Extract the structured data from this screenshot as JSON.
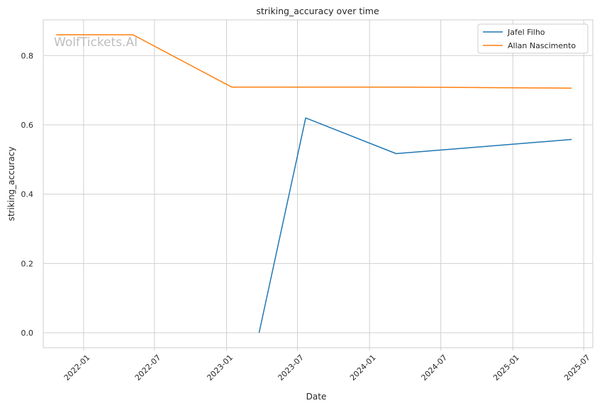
{
  "chart_data": {
    "type": "line",
    "title": "striking_accuracy over time",
    "xlabel": "Date",
    "ylabel": "striking_accuracy",
    "watermark": "WolfTickets.AI",
    "grid": true,
    "legend_position": "top-right",
    "xlim": [
      "2021-09-20",
      "2025-07-24"
    ],
    "ylim": [
      -0.043,
      0.903
    ],
    "x_ticks": [
      "2022-01-01",
      "2022-07-01",
      "2023-01-01",
      "2023-07-01",
      "2024-01-01",
      "2024-07-01",
      "2025-01-01",
      "2025-07-01"
    ],
    "x_tick_labels": [
      "2022-01",
      "2022-07",
      "2023-01",
      "2023-07",
      "2024-01",
      "2024-07",
      "2025-01",
      "2025-07"
    ],
    "y_ticks": [
      0.0,
      0.2,
      0.4,
      0.6,
      0.8
    ],
    "y_tick_labels": [
      "0.0",
      "0.2",
      "0.4",
      "0.6",
      "0.8"
    ],
    "series": [
      {
        "name": "Jafel Filho",
        "color": "#1f77b4",
        "x": [
          "2023-03-25",
          "2023-07-22",
          "2024-03-09",
          "2025-05-31"
        ],
        "y": [
          0.0,
          0.62,
          0.517,
          0.558
        ]
      },
      {
        "name": "Allan Nascimento",
        "color": "#ff7f0e",
        "x": [
          "2021-10-23",
          "2022-05-07",
          "2023-01-14",
          "2024-03-09",
          "2025-05-31"
        ],
        "y": [
          0.86,
          0.86,
          0.709,
          0.709,
          0.706
        ]
      }
    ]
  }
}
